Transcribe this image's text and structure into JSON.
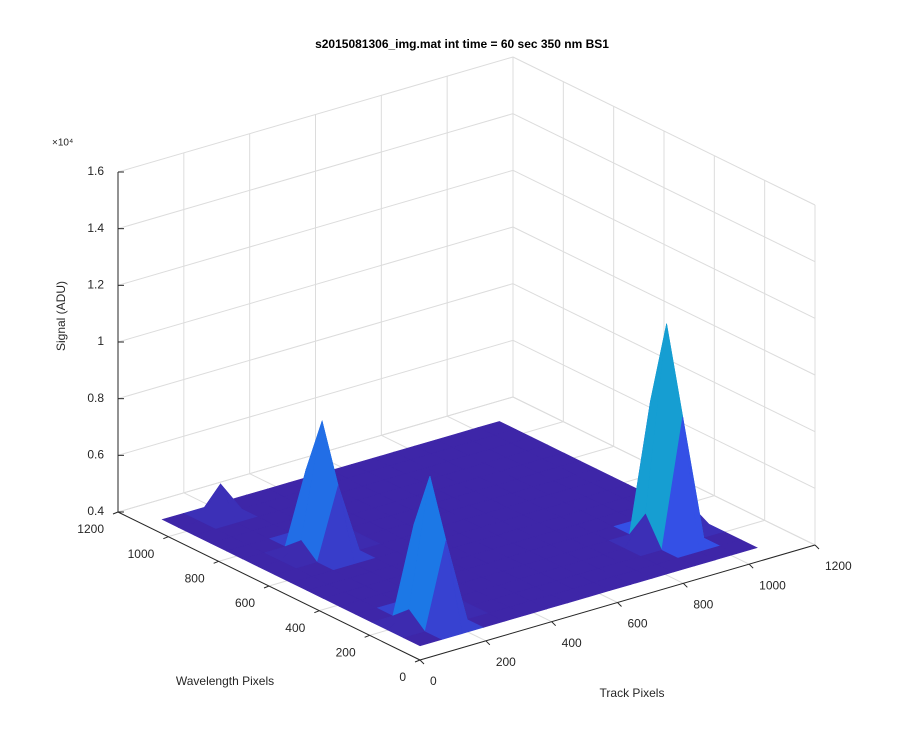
{
  "chart_data": {
    "type": "surface",
    "title": "s2015081306_img.mat int time = 60 sec  350 nm BS1",
    "xlabel": "Track Pixels",
    "ylabel": "Wavelength Pixels",
    "zlabel": "Signal (ADU)",
    "zscale_label": "×10⁴",
    "xlim": [
      0,
      1200
    ],
    "xticks": [
      0,
      200,
      400,
      600,
      800,
      1000,
      1200
    ],
    "ylim": [
      0,
      1200
    ],
    "yticks": [
      0,
      200,
      400,
      600,
      800,
      1000,
      1200
    ],
    "zlim": [
      0.4,
      1.6
    ],
    "zticks": [
      0.4,
      0.6,
      0.8,
      1,
      1.2,
      1.4,
      1.6
    ],
    "grid": true,
    "colormap": "parula",
    "x": [
      0,
      64,
      128,
      192,
      256,
      320,
      384,
      448,
      512,
      576,
      640,
      704,
      768,
      832,
      896,
      960,
      1024
    ],
    "y": [
      0,
      64,
      128,
      192,
      256,
      320,
      384,
      448,
      512,
      576,
      640,
      704,
      768,
      832,
      896,
      960,
      1024
    ],
    "z": [
      [
        0.45,
        0.45,
        0.45,
        0.45,
        0.45,
        0.45,
        0.45,
        0.45,
        0.45,
        0.45,
        0.45,
        0.45,
        0.45,
        0.45,
        0.45,
        0.45,
        0.45
      ],
      [
        0.45,
        0.45,
        0.75,
        0.45,
        0.45,
        0.45,
        0.45,
        0.45,
        0.45,
        0.45,
        0.45,
        0.45,
        0.45,
        0.45,
        0.45,
        0.45,
        0.45
      ],
      [
        0.45,
        0.5,
        0.95,
        0.5,
        0.45,
        0.45,
        0.45,
        0.45,
        0.45,
        0.45,
        0.45,
        0.45,
        0.45,
        0.45,
        0.9,
        0.45,
        0.45
      ],
      [
        0.45,
        0.45,
        0.75,
        0.45,
        0.45,
        0.45,
        0.45,
        0.45,
        0.45,
        0.45,
        0.45,
        0.45,
        0.45,
        0.55,
        1.2,
        0.55,
        0.45
      ],
      [
        0.45,
        0.45,
        0.45,
        0.45,
        0.45,
        0.45,
        0.45,
        0.45,
        0.45,
        0.45,
        0.45,
        0.45,
        0.45,
        0.45,
        0.9,
        0.45,
        0.45
      ],
      [
        0.45,
        0.45,
        0.45,
        0.45,
        0.45,
        0.45,
        0.45,
        0.45,
        0.45,
        0.45,
        0.45,
        0.45,
        0.45,
        0.45,
        0.45,
        0.45,
        0.45
      ],
      [
        0.45,
        0.45,
        0.45,
        0.45,
        0.45,
        0.45,
        0.45,
        0.45,
        0.45,
        0.45,
        0.45,
        0.45,
        0.45,
        0.45,
        0.45,
        0.45,
        0.45
      ],
      [
        0.45,
        0.45,
        0.45,
        0.45,
        0.45,
        0.45,
        0.45,
        0.45,
        0.45,
        0.45,
        0.45,
        0.45,
        0.45,
        0.45,
        0.45,
        0.45,
        0.45
      ],
      [
        0.45,
        0.45,
        0.45,
        0.45,
        0.45,
        0.45,
        0.45,
        0.45,
        0.45,
        0.45,
        0.45,
        0.45,
        0.45,
        0.45,
        0.45,
        0.45,
        0.45
      ],
      [
        0.45,
        0.45,
        0.45,
        0.7,
        0.45,
        0.45,
        0.45,
        0.45,
        0.45,
        0.45,
        0.45,
        0.45,
        0.45,
        0.45,
        0.45,
        0.45,
        0.45
      ],
      [
        0.45,
        0.45,
        0.5,
        0.9,
        0.5,
        0.45,
        0.45,
        0.45,
        0.45,
        0.45,
        0.45,
        0.45,
        0.45,
        0.45,
        0.45,
        0.45,
        0.45
      ],
      [
        0.45,
        0.45,
        0.45,
        0.7,
        0.45,
        0.45,
        0.45,
        0.45,
        0.45,
        0.45,
        0.45,
        0.45,
        0.45,
        0.45,
        0.45,
        0.45,
        0.45
      ],
      [
        0.45,
        0.45,
        0.45,
        0.45,
        0.45,
        0.45,
        0.45,
        0.45,
        0.45,
        0.45,
        0.45,
        0.45,
        0.45,
        0.45,
        0.45,
        0.45,
        0.45
      ],
      [
        0.45,
        0.45,
        0.45,
        0.45,
        0.45,
        0.45,
        0.45,
        0.45,
        0.45,
        0.45,
        0.45,
        0.45,
        0.45,
        0.45,
        0.45,
        0.45,
        0.45
      ],
      [
        0.45,
        0.45,
        0.45,
        0.45,
        0.45,
        0.45,
        0.45,
        0.45,
        0.45,
        0.45,
        0.45,
        0.45,
        0.45,
        0.45,
        0.45,
        0.45,
        0.45
      ],
      [
        0.45,
        0.45,
        0.56,
        0.45,
        0.45,
        0.45,
        0.45,
        0.45,
        0.45,
        0.45,
        0.45,
        0.45,
        0.45,
        0.45,
        0.45,
        0.45,
        0.45
      ],
      [
        0.45,
        0.45,
        0.45,
        0.45,
        0.45,
        0.45,
        0.45,
        0.45,
        0.45,
        0.45,
        0.45,
        0.45,
        0.45,
        0.45,
        0.45,
        0.45,
        0.45
      ]
    ]
  }
}
